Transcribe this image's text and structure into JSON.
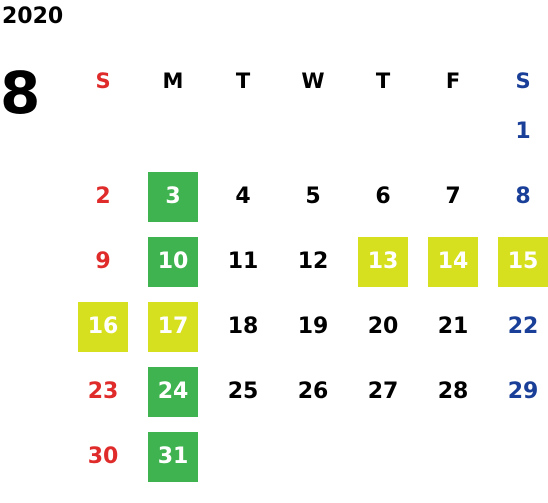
{
  "year": "2020",
  "month": "8",
  "colors": {
    "sunday": "#e02b2b",
    "saturday": "#1a3f98",
    "weekday": "#000000",
    "highlight_green": "#3fb34f",
    "highlight_yellow": "#d6e01e",
    "highlight_text": "#ffffff"
  },
  "weekdays": [
    "S",
    "M",
    "T",
    "W",
    "T",
    "F",
    "S"
  ],
  "weeks": [
    [
      "",
      "",
      "",
      "",
      "",
      "",
      "1"
    ],
    [
      "2",
      "3",
      "4",
      "5",
      "6",
      "7",
      "8"
    ],
    [
      "9",
      "10",
      "11",
      "12",
      "13",
      "14",
      "15"
    ],
    [
      "16",
      "17",
      "18",
      "19",
      "20",
      "21",
      "22"
    ],
    [
      "23",
      "24",
      "25",
      "26",
      "27",
      "28",
      "29"
    ],
    [
      "30",
      "31",
      "",
      "",
      "",
      "",
      ""
    ]
  ],
  "highlights": {
    "3": "green",
    "10": "green",
    "24": "green",
    "31": "green",
    "13": "yellow",
    "14": "yellow",
    "15": "yellow",
    "16": "yellow",
    "17": "yellow"
  }
}
